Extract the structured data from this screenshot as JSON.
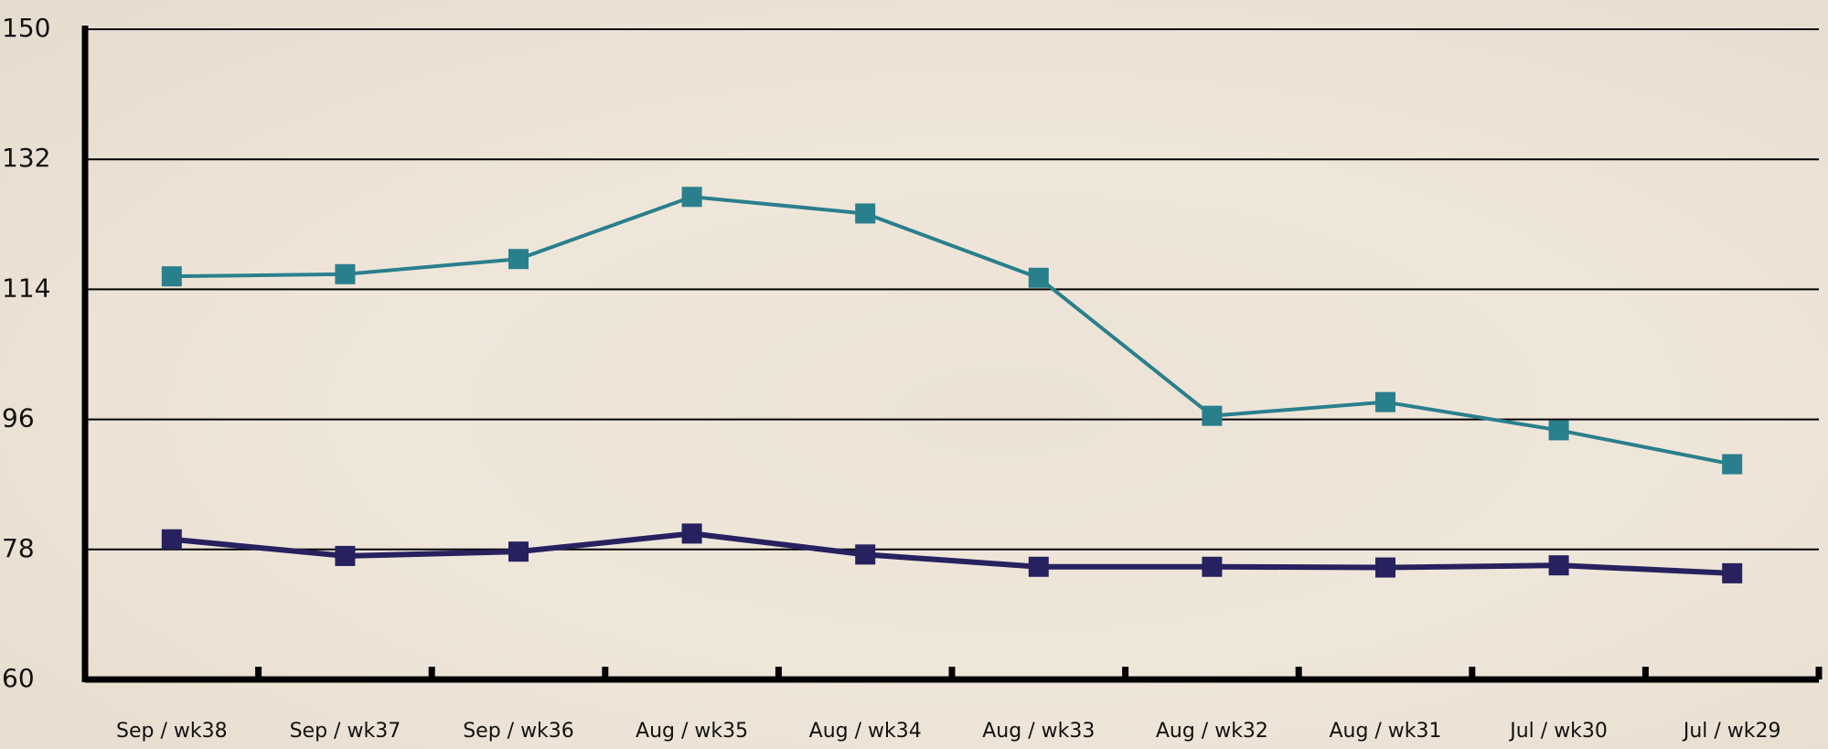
{
  "chart_data": {
    "type": "line",
    "categories": [
      "Sep / wk38",
      "Sep / wk37",
      "Sep / wk36",
      "Aug / wk35",
      "Aug / wk34",
      "Aug / wk33",
      "Aug / wk32",
      "Aug / wk31",
      "Jul / wk30",
      "Jul / wk29"
    ],
    "series": [
      {
        "color": "#2a7f8c",
        "values": [
          115.8,
          116.1,
          118.2,
          126.8,
          124.5,
          115.6,
          96.5,
          98.4,
          94.5,
          89.8
        ]
      },
      {
        "color": "#27215f",
        "values": [
          79.4,
          77.1,
          77.7,
          80.2,
          77.3,
          75.6,
          75.6,
          75.5,
          75.8,
          74.7
        ]
      }
    ],
    "ylim": [
      60,
      150
    ],
    "yticks": [
      60,
      78,
      96,
      114,
      132,
      150
    ],
    "grid": true
  }
}
